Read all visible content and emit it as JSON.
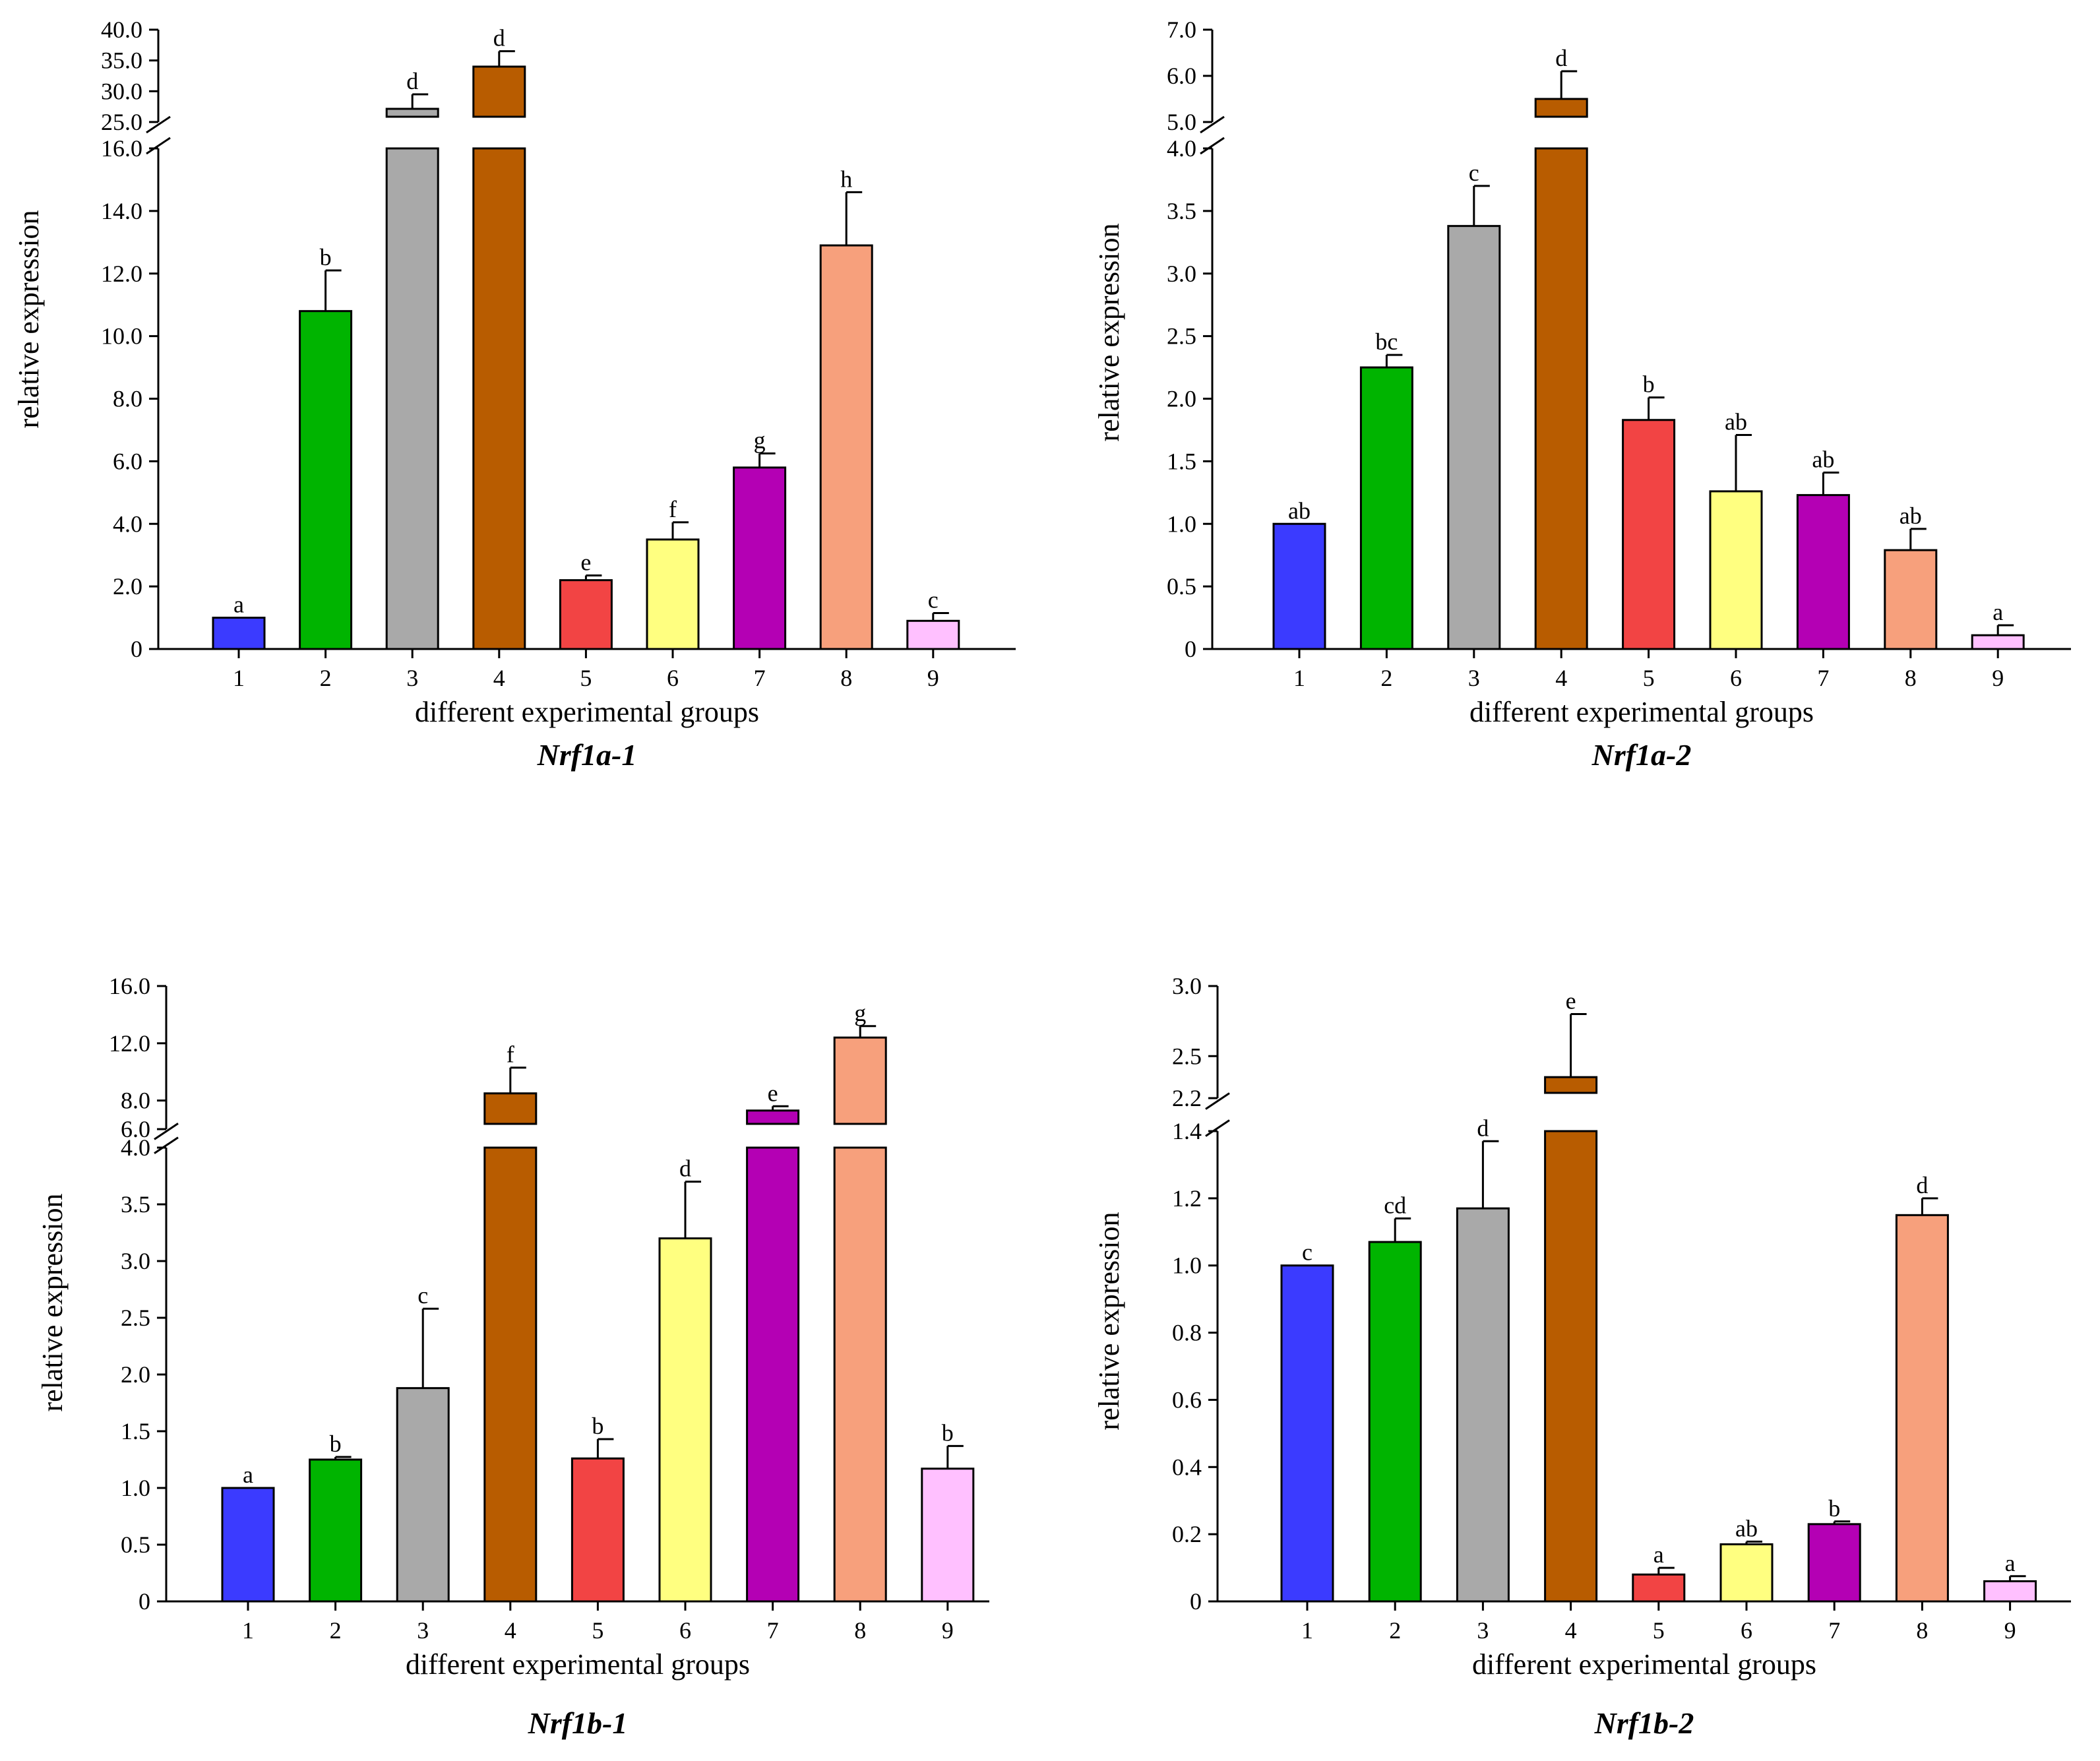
{
  "chart_data": [
    {
      "type": "bar",
      "title": "Nrf1a-1",
      "xlabel": "different experimental groups",
      "ylabel": "relative expression",
      "categories": [
        "1",
        "2",
        "3",
        "4",
        "5",
        "6",
        "7",
        "8",
        "9"
      ],
      "values": [
        1.0,
        10.8,
        27.0,
        34.0,
        2.2,
        3.5,
        5.8,
        12.9,
        0.9
      ],
      "errors": [
        0.0,
        1.3,
        2.5,
        2.5,
        0.15,
        0.55,
        0.45,
        1.7,
        0.25
      ],
      "significance": [
        "a",
        "b",
        "d",
        "d",
        "e",
        "f",
        "g",
        "h",
        "c"
      ],
      "colors": [
        "#3B3BFF",
        "#00B400",
        "#A9A9A9",
        "#B85C00",
        "#F24444",
        "#FFFF80",
        "#B400B4",
        "#F7A07C",
        "#FFC0FF"
      ],
      "axis_break": [
        16.0,
        25.0
      ],
      "lower_ylim": [
        0,
        16.0
      ],
      "upper_ylim": [
        25.0,
        40.0
      ],
      "lower_ticks": [
        0,
        2.0,
        4.0,
        6.0,
        8.0,
        10.0,
        12.0,
        14.0,
        16.0
      ],
      "lower_tick_labels": [
        "0",
        "2.0",
        "4.0",
        "6.0",
        "8.0",
        "10.0",
        "12.0",
        "14.0",
        "16.0"
      ],
      "upper_ticks": [
        25.0,
        30.0,
        35.0,
        40.0
      ],
      "upper_tick_labels": [
        "25.0",
        "30.0",
        "35.0",
        "40.0"
      ]
    },
    {
      "type": "bar",
      "title": "Nrf1a-2",
      "xlabel": "different experimental groups",
      "ylabel": "relative expression",
      "categories": [
        "1",
        "2",
        "3",
        "4",
        "5",
        "6",
        "7",
        "8",
        "9"
      ],
      "values": [
        1.0,
        2.25,
        3.38,
        5.5,
        1.83,
        1.26,
        1.23,
        0.79,
        0.11
      ],
      "errors": [
        0.0,
        0.1,
        0.32,
        0.6,
        0.18,
        0.45,
        0.18,
        0.17,
        0.08
      ],
      "significance": [
        "ab",
        "bc",
        "c",
        "d",
        "b",
        "ab",
        "ab",
        "ab",
        "a"
      ],
      "colors": [
        "#3B3BFF",
        "#00B400",
        "#A9A9A9",
        "#B85C00",
        "#F24444",
        "#FFFF80",
        "#B400B4",
        "#F7A07C",
        "#FFC0FF"
      ],
      "axis_break": [
        4.0,
        5.0
      ],
      "lower_ylim": [
        0,
        4.0
      ],
      "upper_ylim": [
        5.0,
        7.0
      ],
      "lower_ticks": [
        0,
        0.5,
        1.0,
        1.5,
        2.0,
        2.5,
        3.0,
        3.5,
        4.0
      ],
      "lower_tick_labels": [
        "0",
        "0.5",
        "1.0",
        "1.5",
        "2.0",
        "2.5",
        "3.0",
        "3.5",
        "4.0"
      ],
      "upper_ticks": [
        5.0,
        6.0,
        7.0
      ],
      "upper_tick_labels": [
        "5.0",
        "6.0",
        "7.0"
      ]
    },
    {
      "type": "bar",
      "title": "Nrf1b-1",
      "xlabel": "different experimental groups",
      "ylabel": "relative expression",
      "categories": [
        "1",
        "2",
        "3",
        "4",
        "5",
        "6",
        "7",
        "8",
        "9"
      ],
      "values": [
        1.0,
        1.25,
        1.88,
        8.5,
        1.26,
        3.2,
        7.3,
        12.4,
        1.17
      ],
      "errors": [
        0.0,
        0.02,
        0.7,
        1.8,
        0.17,
        0.5,
        0.3,
        0.8,
        0.2
      ],
      "significance": [
        "a",
        "b",
        "c",
        "f",
        "b",
        "d",
        "e",
        "g",
        "b"
      ],
      "colors": [
        "#3B3BFF",
        "#00B400",
        "#A9A9A9",
        "#B85C00",
        "#F24444",
        "#FFFF80",
        "#B400B4",
        "#F7A07C",
        "#FFC0FF"
      ],
      "axis_break": [
        4.0,
        6.0
      ],
      "lower_ylim": [
        0,
        4.0
      ],
      "upper_ylim": [
        6.0,
        16.0
      ],
      "lower_ticks": [
        0,
        0.5,
        1.0,
        1.5,
        2.0,
        2.5,
        3.0,
        3.5,
        4.0
      ],
      "lower_tick_labels": [
        "0",
        "0.5",
        "1.0",
        "1.5",
        "2.0",
        "2.5",
        "3.0",
        "3.5",
        "4.0"
      ],
      "upper_ticks": [
        6.0,
        8.0,
        12.0,
        16.0
      ],
      "upper_tick_labels": [
        "6.0",
        "8.0",
        "12.0",
        "16.0"
      ]
    },
    {
      "type": "bar",
      "title": "Nrf1b-2",
      "xlabel": "different experimental groups",
      "ylabel": "relative expression",
      "categories": [
        "1",
        "2",
        "3",
        "4",
        "5",
        "6",
        "7",
        "8",
        "9"
      ],
      "values": [
        1.0,
        1.07,
        1.17,
        2.35,
        0.08,
        0.17,
        0.23,
        1.15,
        0.06
      ],
      "errors": [
        0.0,
        0.07,
        0.2,
        0.45,
        0.02,
        0.005,
        0.008,
        0.05,
        0.015
      ],
      "significance": [
        "c",
        "cd",
        "d",
        "e",
        "a",
        "ab",
        "b",
        "d",
        "a"
      ],
      "colors": [
        "#3B3BFF",
        "#00B400",
        "#A9A9A9",
        "#B85C00",
        "#F24444",
        "#FFFF80",
        "#B400B4",
        "#F7A07C",
        "#FFC0FF"
      ],
      "axis_break": [
        1.4,
        2.2
      ],
      "lower_ylim": [
        0,
        1.4
      ],
      "upper_ylim": [
        2.2,
        3.0
      ],
      "lower_ticks": [
        0,
        0.2,
        0.4,
        0.6,
        0.8,
        1.0,
        1.2,
        1.4
      ],
      "lower_tick_labels": [
        "0",
        "0.2",
        "0.4",
        "0.6",
        "0.8",
        "1.0",
        "1.2",
        "1.4"
      ],
      "upper_ticks": [
        2.2,
        2.5,
        3.0
      ],
      "upper_tick_labels": [
        "2.2",
        "2.5",
        "3.0"
      ]
    }
  ]
}
